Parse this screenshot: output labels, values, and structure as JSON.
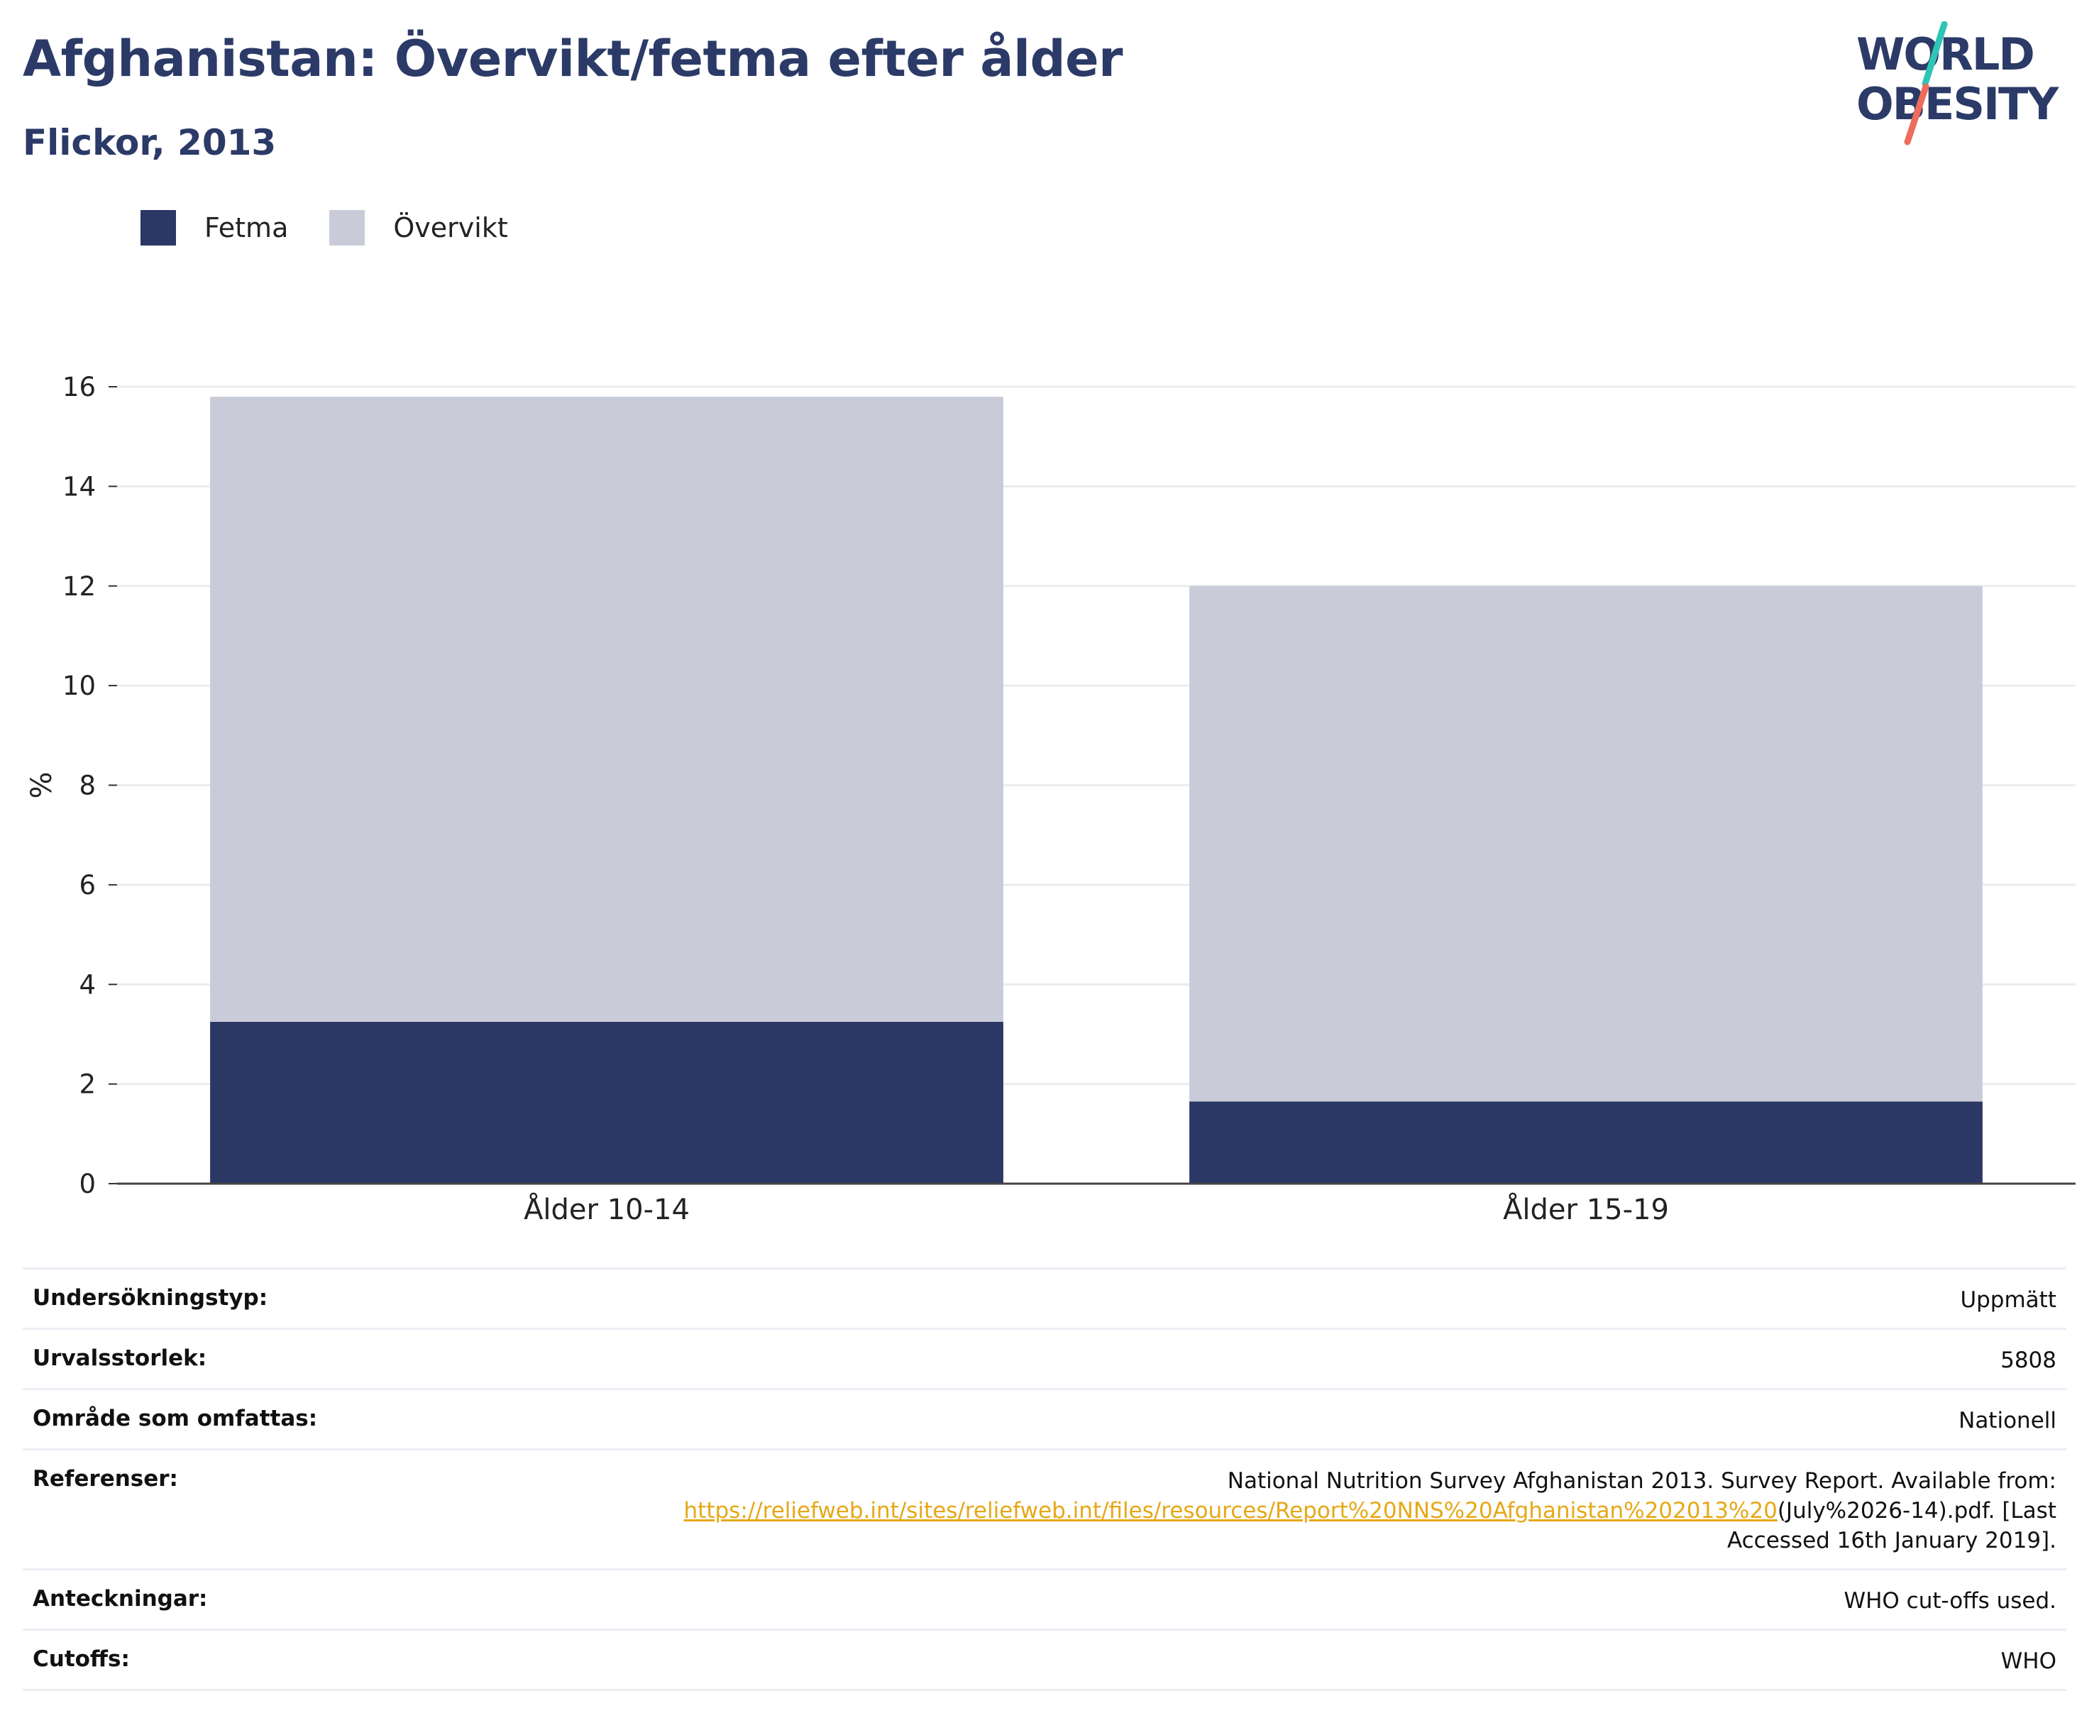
{
  "title": "Afghanistan: Övervikt/fetma efter ålder",
  "subtitle": "Flickor, 2013",
  "logo": {
    "line1": "WORLD",
    "line2": "OBESITY"
  },
  "colors": {
    "fetma": "#2b3764",
    "overvikt": "#c9ccd8",
    "title": "#2b3a67",
    "link": "#e6a817",
    "grid": "#ececf0"
  },
  "legend": [
    {
      "label": "Fetma",
      "color": "#2b3764"
    },
    {
      "label": "Övervikt",
      "color": "#c9ccd8"
    }
  ],
  "chart_data": {
    "type": "bar",
    "stacked": true,
    "categories": [
      "Ålder 10-14",
      "Ålder 15-19"
    ],
    "series": [
      {
        "name": "Fetma",
        "values": [
          3.25,
          1.65
        ]
      },
      {
        "name": "Övervikt",
        "values": [
          12.55,
          10.35
        ]
      }
    ],
    "ylabel": "%",
    "ylim": [
      0,
      16
    ],
    "yticks": [
      0,
      2,
      4,
      6,
      8,
      10,
      12,
      14,
      16
    ],
    "grid": true,
    "legend_position": "top-left"
  },
  "info": {
    "survey_type": {
      "label": "Undersökningstyp:",
      "value": "Uppmätt"
    },
    "sample_size": {
      "label": "Urvalsstorlek:",
      "value": "5808"
    },
    "area": {
      "label": "Område som omfattas:",
      "value": "Nationell"
    },
    "references": {
      "label": "Referenser:",
      "text1": "National Nutrition Survey Afghanistan 2013. Survey Report. Available from:",
      "link": "https://reliefweb.int/sites/reliefweb.int/files/resources/Report%20NNS%20Afghanistan%202013%20",
      "text2": "(July%2026-14).pdf. [Last",
      "text3": "Accessed 16th January 2019]."
    },
    "notes": {
      "label": "Anteckningar:",
      "value": "WHO cut-offs used."
    },
    "cutoffs": {
      "label": "Cutoffs:",
      "value": "WHO"
    }
  }
}
